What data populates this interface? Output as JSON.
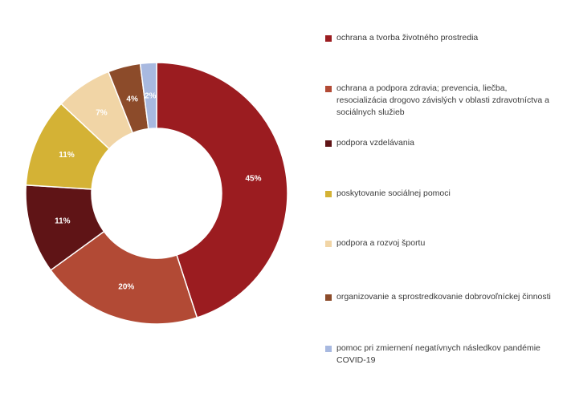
{
  "chart_data": {
    "type": "pie",
    "donut": true,
    "legend_position": "right",
    "slices": [
      {
        "label": "ochrana a tvorba životného prostredia",
        "value": 45,
        "display": "45%",
        "color": "#9b1c20"
      },
      {
        "label": "ochrana a podpora zdravia; prevencia, liečba, resocializácia drogovo závislých v oblasti zdravotníctva a sociálnych služieb",
        "value": 20,
        "display": "20%",
        "color": "#b24a35"
      },
      {
        "label": "podpora vzdelávania",
        "value": 11,
        "display": "11%",
        "color": "#5f1416"
      },
      {
        "label": "poskytovanie sociálnej pomoci",
        "value": 11,
        "display": "11%",
        "color": "#d4b235"
      },
      {
        "label": "podpora a rozvoj športu",
        "value": 7,
        "display": "7%",
        "color": "#f1d5a6"
      },
      {
        "label": "organizovanie a sprostredkovanie dobrovoľníckej činnosti",
        "value": 4,
        "display": "4%",
        "color": "#8c4b2a"
      },
      {
        "label": "pomoc pri zmiernení negatívnych následkov pandémie COVID-19",
        "value": 2,
        "display": "2%",
        "color": "#a8b9e0"
      }
    ]
  }
}
